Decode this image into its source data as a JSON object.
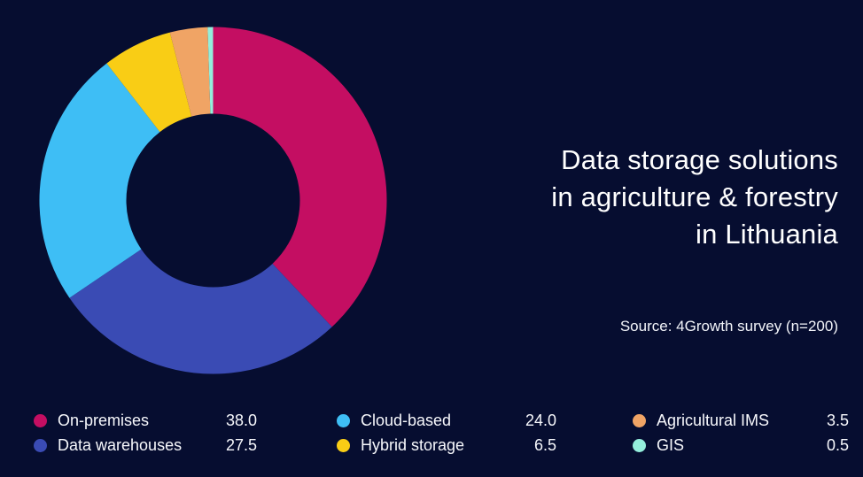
{
  "background": "#060D30",
  "title": {
    "lines": [
      "Data storage solutions",
      "in agriculture & forestry",
      "in Lithuania"
    ],
    "color": "#FFFFFF"
  },
  "source": {
    "text": "Source: 4Growth survey (n=200)"
  },
  "legend": {
    "columns": [
      {
        "items": [
          {
            "label": "On-premises",
            "value": "38.0",
            "color": "#C40E62"
          },
          {
            "label": "Data warehouses",
            "value": "27.5",
            "color": "#3A4BB4"
          }
        ]
      },
      {
        "items": [
          {
            "label": "Cloud-based",
            "value": "24.0",
            "color": "#3EBEF5"
          },
          {
            "label": "Hybrid storage",
            "value": "6.5",
            "color": "#F9CD15"
          }
        ]
      },
      {
        "items": [
          {
            "label": "Agricultural IMS",
            "value": "3.5",
            "color": "#F0A465"
          },
          {
            "label": "GIS",
            "value": "0.5",
            "color": "#94EEDC"
          }
        ]
      }
    ]
  },
  "chart_data": {
    "type": "pie",
    "donut": true,
    "title": "Data storage solutions in agriculture & forestry in Lithuania",
    "subtitle": "Source: 4Growth survey (n=200)",
    "categories": [
      "On-premises",
      "Data warehouses",
      "Cloud-based",
      "Hybrid storage",
      "Agricultural IMS",
      "GIS"
    ],
    "values": [
      38.0,
      27.5,
      24.0,
      6.5,
      3.5,
      0.5
    ],
    "colors": [
      "#C40E62",
      "#3A4BB4",
      "#3EBEF5",
      "#F9CD15",
      "#F0A465",
      "#94EEDC"
    ],
    "unit": "percent",
    "total": 100,
    "start_angle_deg": 0,
    "direction": "clockwise",
    "inner_radius_ratio": 0.5,
    "legend_position": "bottom"
  }
}
